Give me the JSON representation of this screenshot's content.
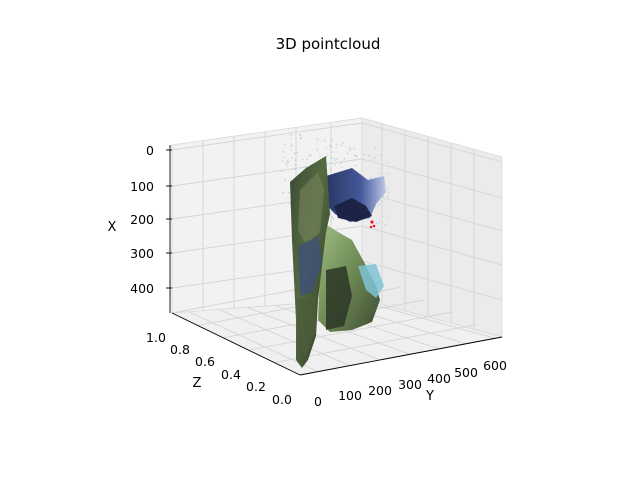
{
  "chart_data": {
    "type": "scatter",
    "projection": "3d",
    "title": "3D pointcloud",
    "axes": {
      "x": {
        "label": "X",
        "ticks": [
          "0",
          "100",
          "200",
          "300",
          "400"
        ],
        "lim": [
          0,
          480
        ],
        "inverted": true
      },
      "y": {
        "label": "Y",
        "ticks": [
          "0",
          "100",
          "200",
          "300",
          "400",
          "500",
          "600"
        ],
        "lim": [
          0,
          640
        ]
      },
      "z": {
        "label": "Z",
        "ticks": [
          "0.0",
          "0.2",
          "0.4",
          "0.6",
          "0.8",
          "1.0"
        ],
        "lim": [
          0,
          1
        ]
      }
    },
    "grid": true,
    "legend": "none",
    "series": [
      {
        "values": "textured point cloud (RGB image rendered as a 3D surface)"
      }
    ],
    "colors": {
      "pane": "#f2f2f2",
      "pane_side": "#ebebeb",
      "grid": "#d4d4d4",
      "surface_dark": "#2e3b2a",
      "surface_mid": "#4f6b3c",
      "surface_light": "#a9c48c",
      "blue_patch": "#2f3f7c",
      "cyan_patch": "#7fc3d6",
      "sparse_points": "#8fa6c6",
      "red_points": "#e41e1e"
    }
  }
}
